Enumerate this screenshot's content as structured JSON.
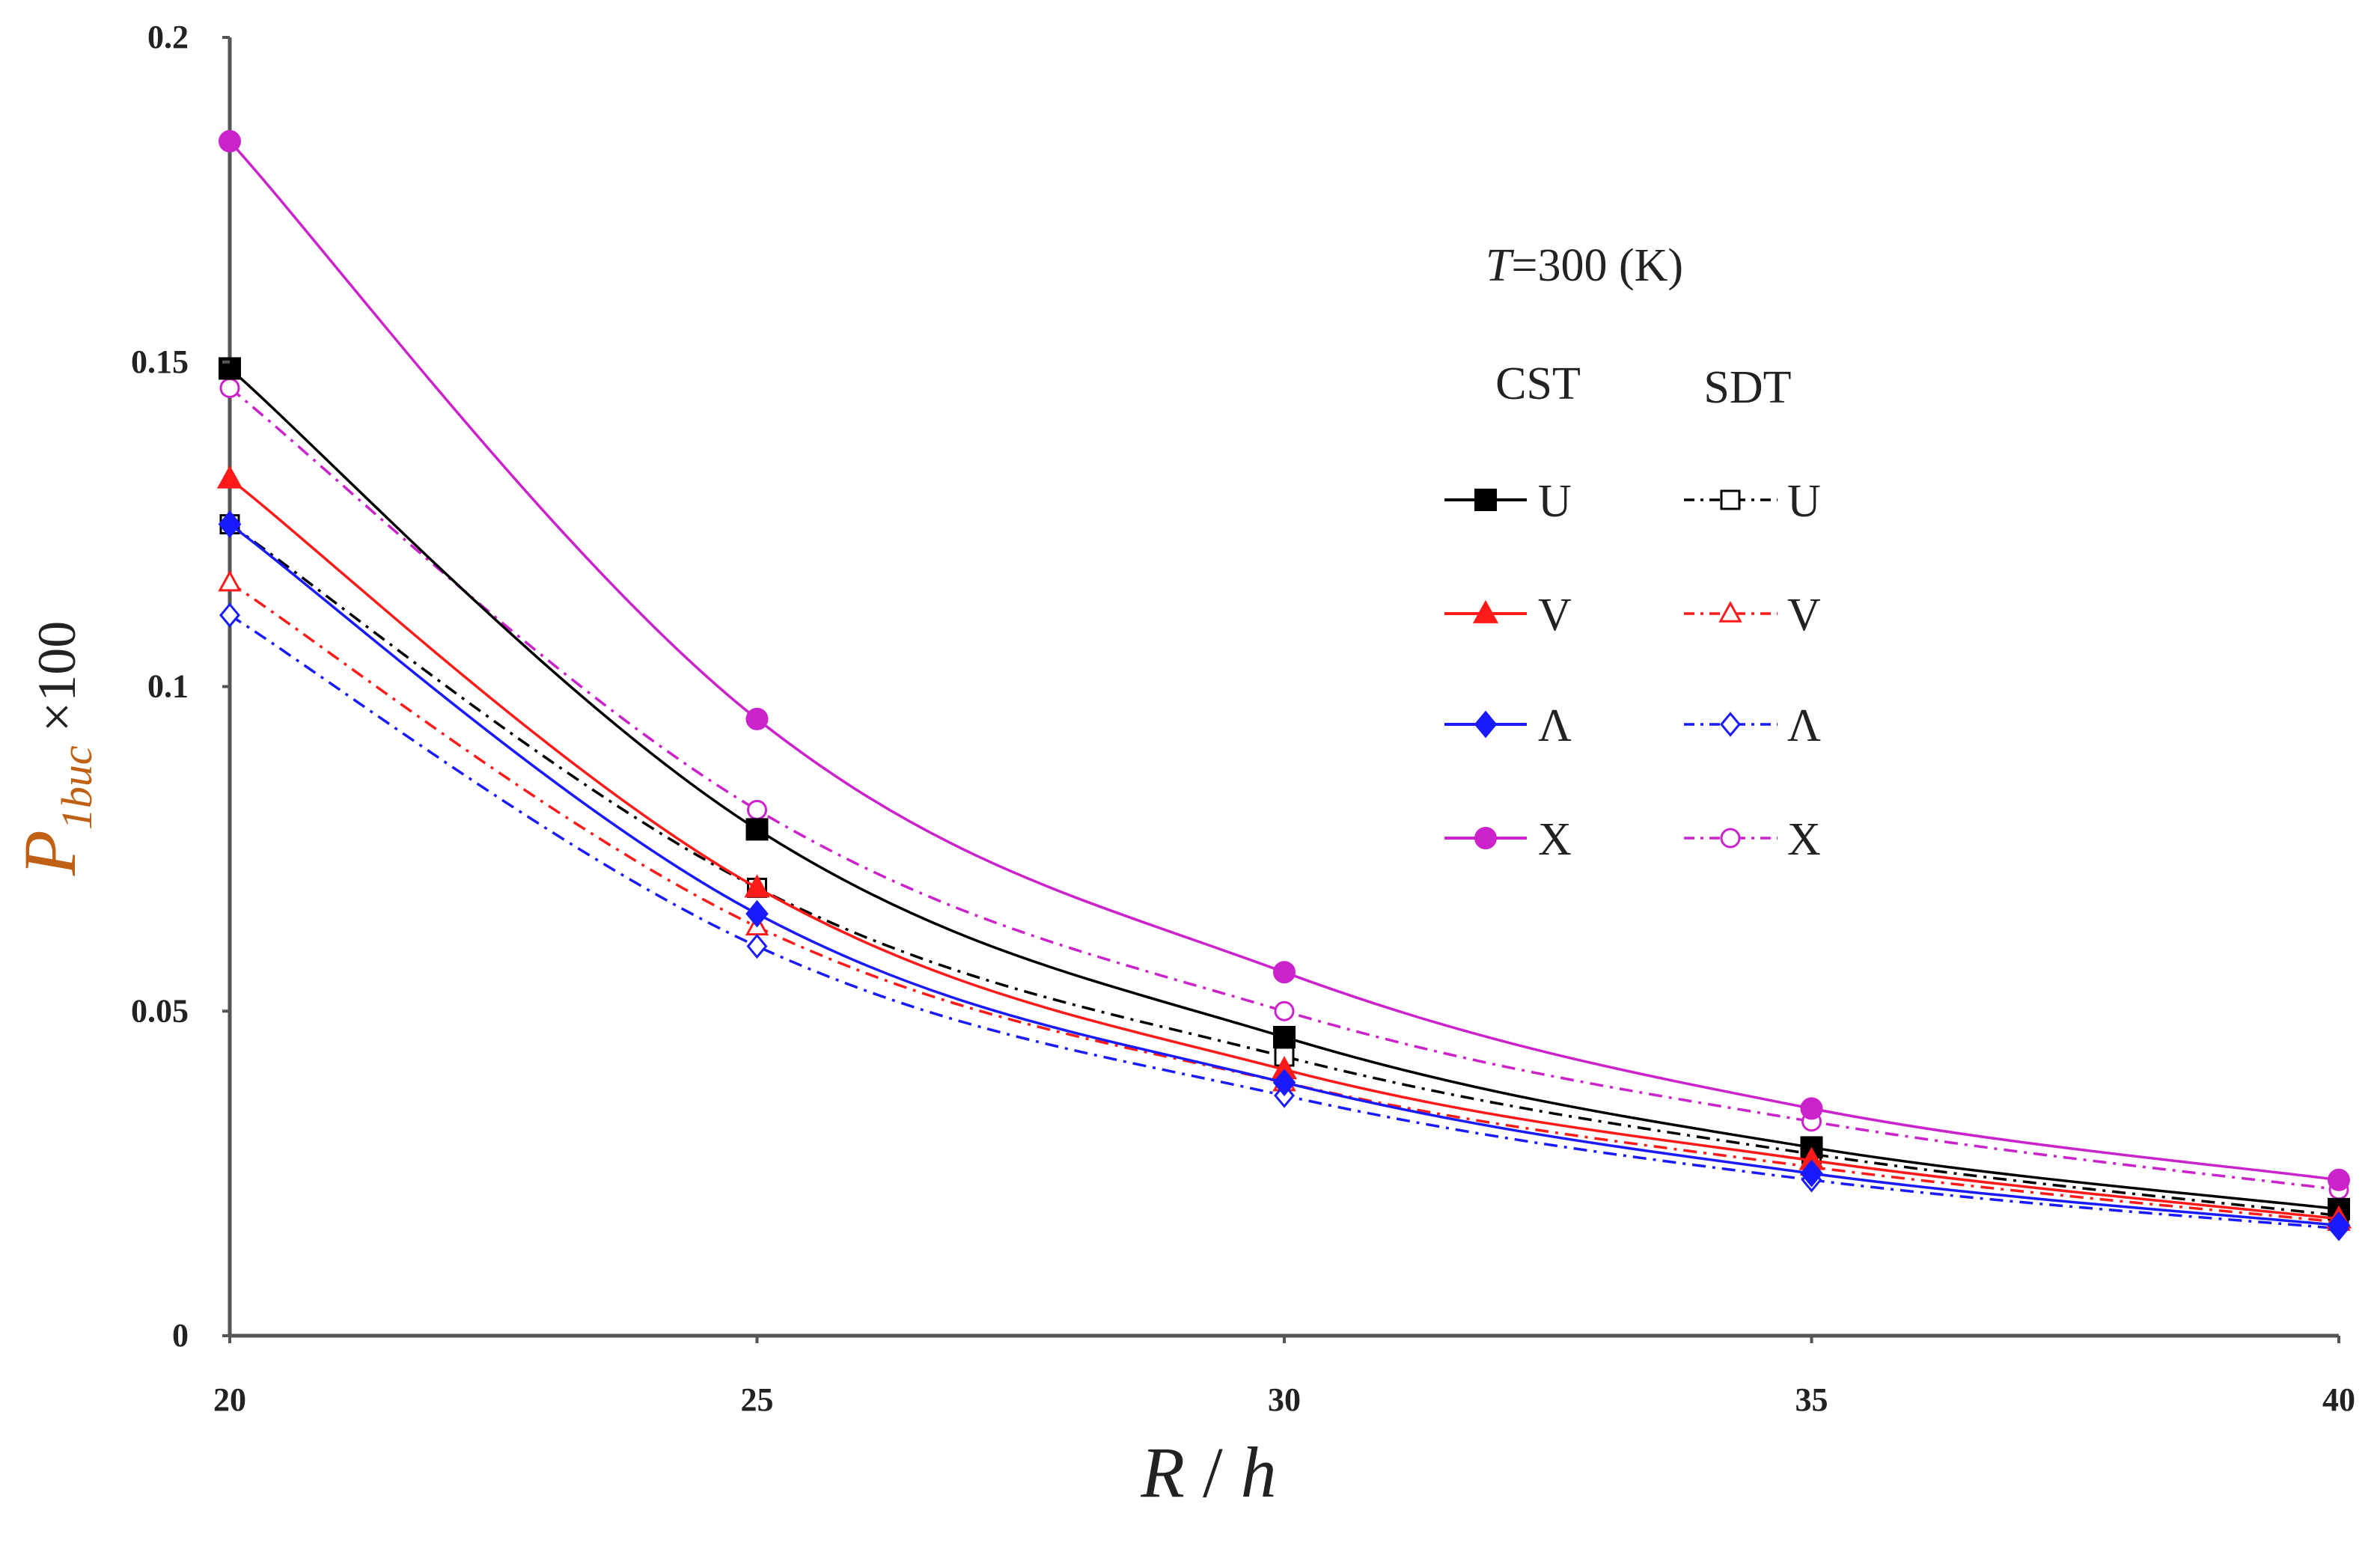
{
  "chart_data": {
    "type": "line",
    "title": "",
    "xlabel": "R / h",
    "xlabel_parts": {
      "r": "R",
      "sep": " / ",
      "h": "h"
    },
    "ylabel": "P1buc ×100",
    "ylabel_parts": {
      "main": "P",
      "sub": "1buc",
      "mult": "×100"
    },
    "x": [
      20,
      25,
      30,
      35,
      40
    ],
    "xlim": [
      20,
      40
    ],
    "ylim": [
      0,
      0.2
    ],
    "x_ticks": [
      "20",
      "25",
      "30",
      "35",
      "40"
    ],
    "y_ticks": [
      "0",
      "0.05",
      "0.1",
      "0.15",
      "0.2"
    ],
    "x_tick_values": [
      20,
      25,
      30,
      35,
      40
    ],
    "y_tick_values": [
      0,
      0.05,
      0.1,
      0.15,
      0.2
    ],
    "grid": false,
    "legend": {
      "placement": "right",
      "header_prefix": "T",
      "header_suffix": "=300 (K)",
      "col_cst": "CST",
      "col_sdt": "SDT"
    },
    "series": [
      {
        "name": "U",
        "theory": "CST",
        "color": "#000000",
        "marker": "square",
        "filled": true,
        "dashed": false,
        "values": [
          0.149,
          0.078,
          0.046,
          0.029,
          0.0195
        ]
      },
      {
        "name": "V",
        "theory": "CST",
        "color": "#ff1a1a",
        "marker": "triangle",
        "filled": true,
        "dashed": false,
        "values": [
          0.132,
          0.069,
          0.041,
          0.027,
          0.018
        ]
      },
      {
        "name": "Λ",
        "theory": "CST",
        "color": "#1a1aff",
        "marker": "diamond",
        "filled": true,
        "dashed": false,
        "values": [
          0.125,
          0.065,
          0.039,
          0.025,
          0.017
        ]
      },
      {
        "name": "X",
        "theory": "CST",
        "color": "#cc22cc",
        "marker": "circle",
        "filled": true,
        "dashed": false,
        "values": [
          0.184,
          0.095,
          0.056,
          0.035,
          0.024
        ]
      },
      {
        "name": "U",
        "theory": "SDT",
        "color": "#000000",
        "marker": "square",
        "filled": false,
        "dashed": true,
        "values": [
          0.125,
          0.069,
          0.043,
          0.028,
          0.0185
        ]
      },
      {
        "name": "V",
        "theory": "SDT",
        "color": "#ff1a1a",
        "marker": "triangle",
        "filled": false,
        "dashed": true,
        "values": [
          0.116,
          0.063,
          0.039,
          0.026,
          0.0175
        ]
      },
      {
        "name": "Λ",
        "theory": "SDT",
        "color": "#1a1aff",
        "marker": "diamond",
        "filled": false,
        "dashed": true,
        "values": [
          0.111,
          0.06,
          0.037,
          0.024,
          0.0165
        ]
      },
      {
        "name": "X",
        "theory": "SDT",
        "color": "#cc22cc",
        "marker": "circle",
        "filled": false,
        "dashed": true,
        "values": [
          0.146,
          0.081,
          0.05,
          0.033,
          0.0225
        ]
      }
    ]
  }
}
